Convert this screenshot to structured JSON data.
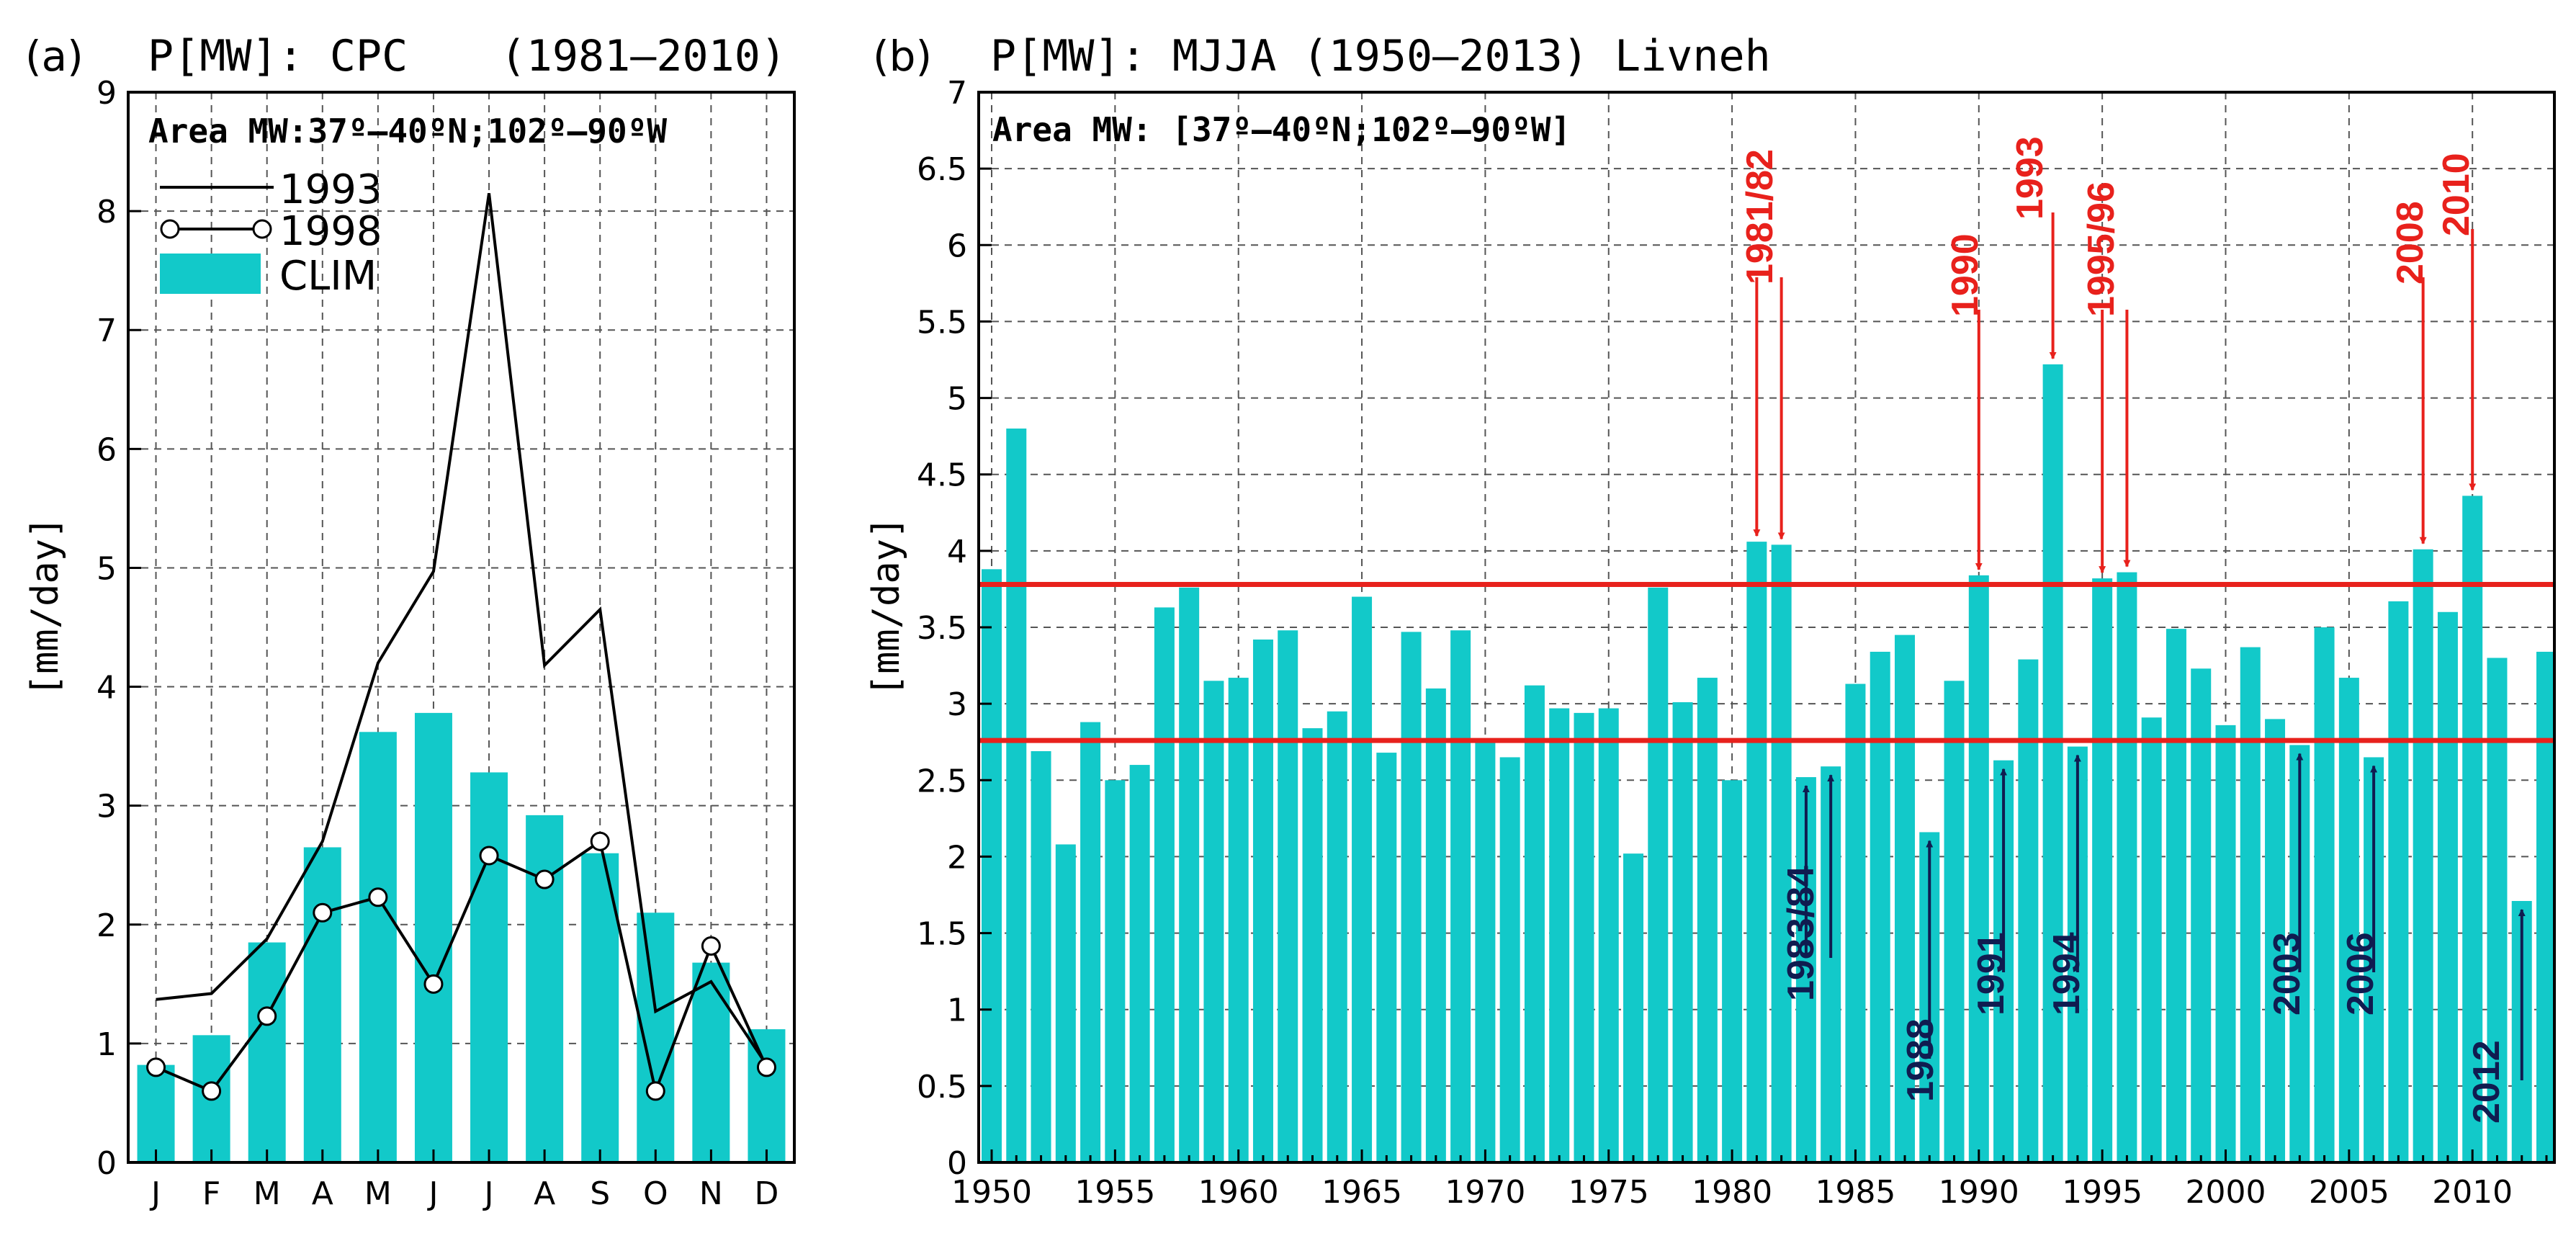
{
  "chart_data": [
    {
      "type": "bar",
      "panel_label": "(a)",
      "title": "P[MW]: CPC",
      "period": "(1981–2010)",
      "area_note": "Area MW:37º–40ºN;102º–90ºW",
      "xlabel": "",
      "ylabel": "[mm/day]",
      "ylim": [
        0,
        9
      ],
      "yticks": [
        "0",
        "1",
        "2",
        "3",
        "4",
        "5",
        "6",
        "7",
        "8",
        "9"
      ],
      "categories": [
        "J",
        "F",
        "M",
        "A",
        "M",
        "J",
        "J",
        "A",
        "S",
        "O",
        "N",
        "D"
      ],
      "legend": {
        "position": "top-left",
        "entries": [
          "1993",
          "1998",
          "CLIM"
        ]
      },
      "series": [
        {
          "name": "CLIM",
          "kind": "bar",
          "color": "#12c9c9",
          "values": [
            0.82,
            1.07,
            1.85,
            2.65,
            3.62,
            3.78,
            3.28,
            2.92,
            2.6,
            2.1,
            1.68,
            1.12
          ]
        },
        {
          "name": "1993",
          "kind": "line",
          "color": "#000000",
          "values": [
            1.37,
            1.42,
            1.88,
            2.7,
            4.2,
            4.97,
            8.15,
            4.18,
            4.65,
            1.27,
            1.52,
            0.82
          ]
        },
        {
          "name": "1998",
          "kind": "line-markers",
          "color": "#000000",
          "values": [
            0.8,
            0.6,
            1.23,
            2.1,
            2.23,
            1.5,
            2.58,
            2.38,
            2.7,
            0.6,
            1.82,
            0.8
          ]
        }
      ]
    },
    {
      "type": "bar",
      "panel_label": "(b)",
      "title": "P[MW]: MJJA (1950–2013) Livneh",
      "area_note": "Area MW: [37º–40ºN;102º–90ºW]",
      "xlabel": "",
      "ylabel": "[mm/day]",
      "ylim": [
        0,
        7
      ],
      "xlim": [
        1950,
        2013
      ],
      "yticks": [
        "0",
        "0.5",
        "1",
        "1.5",
        "2",
        "2.5",
        "3",
        "3.5",
        "4",
        "4.5",
        "5",
        "5.5",
        "6",
        "6.5",
        "7"
      ],
      "xticks": [
        "1950",
        "1955",
        "1960",
        "1965",
        "1970",
        "1975",
        "1980",
        "1985",
        "1990",
        "1995",
        "2000",
        "2005",
        "2010"
      ],
      "x": [
        1950,
        1951,
        1952,
        1953,
        1954,
        1955,
        1956,
        1957,
        1958,
        1959,
        1960,
        1961,
        1962,
        1963,
        1964,
        1965,
        1966,
        1967,
        1968,
        1969,
        1970,
        1971,
        1972,
        1973,
        1974,
        1975,
        1976,
        1977,
        1978,
        1979,
        1980,
        1981,
        1982,
        1983,
        1984,
        1985,
        1986,
        1987,
        1988,
        1989,
        1990,
        1991,
        1992,
        1993,
        1994,
        1995,
        1996,
        1997,
        1998,
        1999,
        2000,
        2001,
        2002,
        2003,
        2004,
        2005,
        2006,
        2007,
        2008,
        2009,
        2010,
        2011,
        2012,
        2013
      ],
      "values": [
        3.88,
        4.8,
        2.69,
        2.08,
        2.88,
        2.5,
        2.6,
        3.63,
        3.76,
        3.15,
        3.17,
        3.42,
        3.48,
        2.84,
        2.95,
        3.7,
        2.68,
        3.47,
        3.1,
        3.48,
        2.76,
        2.65,
        3.12,
        2.97,
        2.94,
        2.97,
        2.02,
        3.76,
        3.01,
        3.17,
        2.5,
        4.06,
        4.04,
        2.52,
        2.59,
        3.13,
        3.34,
        3.45,
        2.16,
        3.15,
        3.84,
        2.63,
        3.29,
        5.22,
        2.72,
        3.82,
        3.86,
        2.91,
        3.49,
        3.23,
        2.86,
        3.37,
        2.9,
        2.73,
        3.5,
        3.17,
        2.65,
        3.67,
        4.01,
        3.6,
        4.36,
        3.3,
        1.71,
        3.34
      ],
      "thresholds": [
        3.78,
        2.76
      ],
      "threshold_color": "#e8211c",
      "wet_color": "#e8211c",
      "dry_color": "#101c50",
      "wet_years": [
        {
          "label": "1981/82",
          "years": [
            1981,
            1982
          ]
        },
        {
          "label": "1990",
          "years": [
            1990
          ]
        },
        {
          "label": "1993",
          "years": [
            1993
          ]
        },
        {
          "label": "1995/96",
          "years": [
            1995,
            1996
          ]
        },
        {
          "label": "2008",
          "years": [
            2008
          ]
        },
        {
          "label": "2010",
          "years": [
            2010
          ]
        }
      ],
      "dry_years": [
        {
          "label": "1983/84",
          "years": [
            1983,
            1984
          ]
        },
        {
          "label": "1988",
          "years": [
            1988
          ]
        },
        {
          "label": "1991",
          "years": [
            1991
          ]
        },
        {
          "label": "1994",
          "years": [
            1994
          ]
        },
        {
          "label": "2003",
          "years": [
            2003
          ]
        },
        {
          "label": "2006",
          "years": [
            2006
          ]
        },
        {
          "label": "2012",
          "years": [
            2012
          ]
        }
      ]
    }
  ]
}
